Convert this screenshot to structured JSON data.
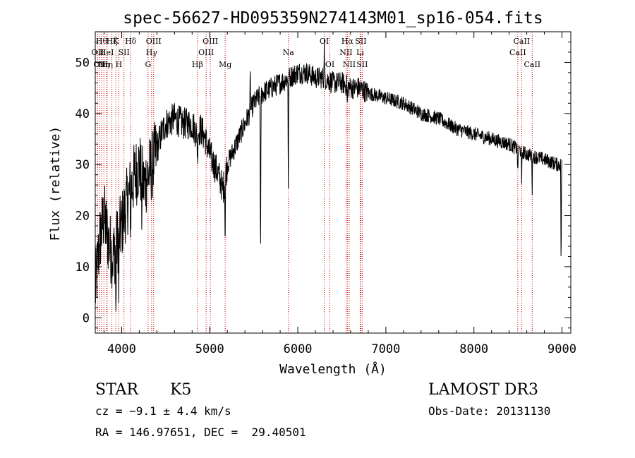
{
  "chart_data": {
    "type": "line",
    "title": "spec-56627-HD095359N274143M01_sp16-054.fits",
    "xlabel": "Wavelength (Å)",
    "ylabel": "Flux (relative)",
    "xlim": [
      3700,
      9100
    ],
    "ylim": [
      -3,
      56
    ],
    "x_ticks": [
      4000,
      5000,
      6000,
      7000,
      8000,
      9000
    ],
    "y_ticks": [
      0,
      10,
      20,
      30,
      40,
      50
    ],
    "grid": false,
    "series": [
      {
        "name": "spectrum",
        "continuum_x": [
          3700,
          3750,
          3800,
          3850,
          3900,
          3950,
          4000,
          4050,
          4100,
          4150,
          4200,
          4250,
          4300,
          4350,
          4400,
          4450,
          4500,
          4600,
          4700,
          4800,
          4850,
          4900,
          4950,
          5000,
          5050,
          5100,
          5150,
          5200,
          5300,
          5400,
          5500,
          5600,
          5700,
          5800,
          5900,
          6000,
          6100,
          6200,
          6300,
          6400,
          6500,
          6600,
          6700,
          6800,
          7000,
          7200,
          7400,
          7600,
          7800,
          8000,
          8200,
          8400,
          8600,
          8800,
          8950,
          9000
        ],
        "continuum_y": [
          5,
          15,
          20,
          15,
          12,
          15,
          18,
          22,
          25,
          28,
          30,
          26,
          28,
          30,
          33,
          36,
          38,
          39,
          38,
          38,
          36,
          37,
          35,
          32,
          30,
          28,
          25,
          30,
          34,
          38,
          42,
          44,
          45,
          46,
          47,
          48,
          48,
          47,
          47,
          46,
          46,
          45,
          45,
          44,
          43,
          42,
          40,
          39,
          37,
          36,
          35,
          34,
          32,
          31,
          30,
          30
        ],
        "absorption_lines": [
          {
            "x": 3934,
            "depth": 15
          },
          {
            "x": 3968,
            "depth": 14
          },
          {
            "x": 4102,
            "depth": 8
          },
          {
            "x": 4226,
            "depth": 10
          },
          {
            "x": 4861,
            "depth": 6
          },
          {
            "x": 5175,
            "depth": 13
          },
          {
            "x": 5577,
            "depth": 37
          },
          {
            "x": 5893,
            "depth": 22
          },
          {
            "x": 6563,
            "depth": 4
          },
          {
            "x": 8498,
            "depth": 6
          },
          {
            "x": 8542,
            "depth": 7
          },
          {
            "x": 8662,
            "depth": 7
          },
          {
            "x": 8990,
            "depth": 22
          }
        ],
        "emission_lines": [
          {
            "x": 5460,
            "height": 8
          },
          {
            "x": 6300,
            "height": 8
          }
        ]
      }
    ],
    "line_markers": [
      {
        "x": 3727,
        "label": "OII",
        "row": 2
      },
      {
        "x": 3750,
        "label": "OII",
        "row": 3
      },
      {
        "x": 3772,
        "label": "Hθ",
        "row": 1
      },
      {
        "x": 3798,
        "label": "Hη",
        "row": 3
      },
      {
        "x": 3830,
        "label": "HeI",
        "row": 2
      },
      {
        "x": 3835,
        "label": "Hη",
        "row": 3
      },
      {
        "x": 3889,
        "label": "Hζ",
        "row": 1
      },
      {
        "x": 3934,
        "label": "K",
        "row": 1
      },
      {
        "x": 3968,
        "label": "H",
        "row": 3
      },
      {
        "x": 4026,
        "label": "SII",
        "row": 2
      },
      {
        "x": 4102,
        "label": "Hδ",
        "row": 1
      },
      {
        "x": 4300,
        "label": "G",
        "row": 3
      },
      {
        "x": 4340,
        "label": "Hγ",
        "row": 2
      },
      {
        "x": 4363,
        "label": "OIII",
        "row": 1
      },
      {
        "x": 4861,
        "label": "Hβ",
        "row": 3
      },
      {
        "x": 4959,
        "label": "OIII",
        "row": 2
      },
      {
        "x": 5007,
        "label": "OIII",
        "row": 1
      },
      {
        "x": 5175,
        "label": "Mg",
        "row": 3
      },
      {
        "x": 5893,
        "label": "Na",
        "row": 2
      },
      {
        "x": 6300,
        "label": "OI",
        "row": 1
      },
      {
        "x": 6364,
        "label": "OI",
        "row": 3
      },
      {
        "x": 6548,
        "label": "NII",
        "row": 2
      },
      {
        "x": 6563,
        "label": "Hα",
        "row": 1
      },
      {
        "x": 6584,
        "label": "NII",
        "row": 3
      },
      {
        "x": 6708,
        "label": "Li",
        "row": 2
      },
      {
        "x": 6716,
        "label": "SII",
        "row": 1
      },
      {
        "x": 6731,
        "label": "SII",
        "row": 3
      },
      {
        "x": 8498,
        "label": "CaII",
        "row": 2
      },
      {
        "x": 8542,
        "label": "CaII",
        "row": 1
      },
      {
        "x": 8662,
        "label": "CaII",
        "row": 3
      }
    ]
  },
  "info": {
    "class": "STAR",
    "subclass": "K5",
    "survey": "LAMOST DR3",
    "cz": "cz = −9.1 ± 4.4 km/s",
    "obs_date": "Obs-Date: 20131130",
    "coords": "RA = 146.97651, DEC =  29.40501"
  }
}
